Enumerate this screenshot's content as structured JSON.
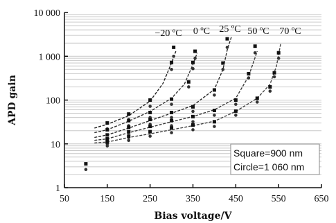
{
  "chart_data": {
    "type": "scatter",
    "xlabel": "Bias voltage/V",
    "ylabel": "APD gain",
    "xlim": [
      50,
      650
    ],
    "ylim": [
      1,
      10000
    ],
    "yscale": "log",
    "x_ticks": [
      "50",
      "150",
      "250",
      "350",
      "450",
      "550",
      "650"
    ],
    "y_ticks": [
      "1",
      "10",
      "100",
      "1 000",
      "10 000"
    ],
    "grid": "horizontal",
    "legend_text": [
      "Square=900 nm",
      "Circle=1 060 nm"
    ],
    "legend_placement": "bottom-right",
    "series": [
      {
        "name": "−20 ºC",
        "square": [
          [
            100,
            3.5
          ],
          [
            150,
            30
          ],
          [
            200,
            48
          ],
          [
            250,
            100
          ],
          [
            300,
            720
          ],
          [
            305,
            1600
          ]
        ],
        "circle": [
          [
            100,
            2.6
          ],
          [
            150,
            22
          ],
          [
            200,
            36
          ],
          [
            250,
            72
          ],
          [
            300,
            500
          ],
          [
            305,
            1000
          ]
        ],
        "fit": [
          [
            120,
            23
          ],
          [
            150,
            28
          ],
          [
            200,
            44
          ],
          [
            250,
            95
          ],
          [
            280,
            240
          ],
          [
            300,
            700
          ],
          [
            310,
            1300
          ]
        ]
      },
      {
        "name": "0 ºC",
        "square": [
          [
            150,
            21
          ],
          [
            200,
            34
          ],
          [
            250,
            52
          ],
          [
            300,
            105
          ],
          [
            340,
            260
          ],
          [
            350,
            720
          ],
          [
            355,
            1300
          ]
        ],
        "circle": [
          [
            150,
            16
          ],
          [
            200,
            26
          ],
          [
            250,
            40
          ],
          [
            300,
            80
          ],
          [
            340,
            200
          ],
          [
            350,
            520
          ],
          [
            355,
            900
          ]
        ],
        "fit": [
          [
            120,
            18
          ],
          [
            150,
            21
          ],
          [
            200,
            33
          ],
          [
            250,
            55
          ],
          [
            300,
            110
          ],
          [
            330,
            230
          ],
          [
            350,
            650
          ],
          [
            360,
            1200
          ]
        ]
      },
      {
        "name": "25 ºC",
        "square": [
          [
            150,
            16
          ],
          [
            200,
            24
          ],
          [
            250,
            36
          ],
          [
            300,
            52
          ],
          [
            350,
            70
          ],
          [
            400,
            170
          ],
          [
            420,
            700
          ],
          [
            430,
            2500
          ]
        ],
        "circle": [
          [
            150,
            12
          ],
          [
            200,
            18
          ],
          [
            250,
            28
          ],
          [
            300,
            40
          ],
          [
            350,
            55
          ],
          [
            400,
            130
          ],
          [
            420,
            500
          ],
          [
            430,
            1600
          ]
        ],
        "fit": [
          [
            120,
            14
          ],
          [
            150,
            16
          ],
          [
            200,
            23
          ],
          [
            250,
            34
          ],
          [
            300,
            50
          ],
          [
            350,
            75
          ],
          [
            400,
            175
          ],
          [
            420,
            500
          ],
          [
            430,
            1400
          ],
          [
            440,
            2800
          ]
        ]
      },
      {
        "name": "50 ºC",
        "square": [
          [
            150,
            13
          ],
          [
            200,
            19
          ],
          [
            250,
            25
          ],
          [
            300,
            34
          ],
          [
            350,
            42
          ],
          [
            400,
            58
          ],
          [
            450,
            100
          ],
          [
            480,
            400
          ],
          [
            495,
            1700
          ]
        ],
        "circle": [
          [
            150,
            10
          ],
          [
            200,
            14
          ],
          [
            250,
            19
          ],
          [
            300,
            26
          ],
          [
            350,
            32
          ],
          [
            400,
            45
          ],
          [
            450,
            80
          ],
          [
            480,
            320
          ],
          [
            495,
            1200
          ]
        ],
        "fit": [
          [
            120,
            12
          ],
          [
            150,
            13
          ],
          [
            200,
            18
          ],
          [
            250,
            24
          ],
          [
            300,
            32
          ],
          [
            350,
            42
          ],
          [
            400,
            60
          ],
          [
            450,
            110
          ],
          [
            480,
            350
          ],
          [
            500,
            1300
          ]
        ]
      },
      {
        "name": "70 ºC",
        "square": [
          [
            150,
            11
          ],
          [
            200,
            15
          ],
          [
            250,
            19
          ],
          [
            300,
            23
          ],
          [
            350,
            27
          ],
          [
            400,
            32
          ],
          [
            450,
            56
          ],
          [
            500,
            110
          ],
          [
            530,
            200
          ],
          [
            540,
            420
          ],
          [
            550,
            1200
          ]
        ],
        "circle": [
          [
            150,
            9
          ],
          [
            200,
            12
          ],
          [
            250,
            15
          ],
          [
            300,
            18
          ],
          [
            350,
            21
          ],
          [
            400,
            25
          ],
          [
            450,
            45
          ],
          [
            500,
            90
          ],
          [
            530,
            160
          ],
          [
            540,
            340
          ],
          [
            550,
            900
          ]
        ],
        "fit": [
          [
            120,
            10.5
          ],
          [
            150,
            11
          ],
          [
            200,
            14
          ],
          [
            250,
            17
          ],
          [
            300,
            21
          ],
          [
            350,
            26
          ],
          [
            400,
            33
          ],
          [
            450,
            55
          ],
          [
            500,
            110
          ],
          [
            530,
            230
          ],
          [
            545,
            600
          ],
          [
            555,
            2000
          ]
        ]
      }
    ]
  }
}
